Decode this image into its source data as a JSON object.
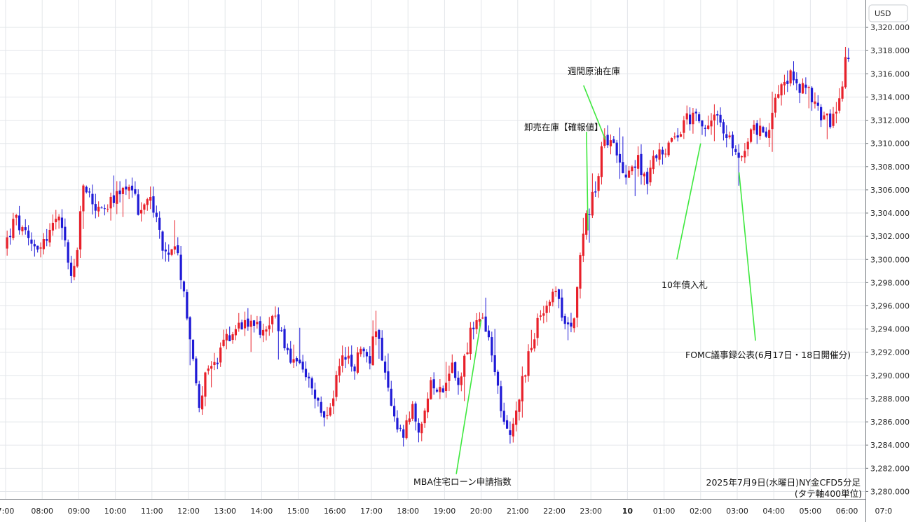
{
  "chart_data": {
    "type": "candlestick",
    "currency": "USD",
    "footer_title": "2025年7月9日(水曜日)NY金CFD5分足",
    "footer_note": "(タテ軸400単位)",
    "ylim": [
      3279,
      3322
    ],
    "y_ticks": [
      3280,
      3282,
      3284,
      3286,
      3288,
      3290,
      3292,
      3294,
      3296,
      3298,
      3300,
      3302,
      3304,
      3306,
      3308,
      3310,
      3312,
      3314,
      3316,
      3318,
      3320
    ],
    "y_tick_labels": [
      "3,280.000",
      "3,282.000",
      "3,284.000",
      "3,286.000",
      "3,288.000",
      "3,290.000",
      "3,292.000",
      "3,294.000",
      "3,296.000",
      "3,298.000",
      "3,300.000",
      "3,302.000",
      "3,304.000",
      "3,306.000",
      "3,308.000",
      "3,310.000",
      "3,312.000",
      "3,314.000",
      "3,316.000",
      "3,318.000",
      "3,320.000"
    ],
    "x_hours": [
      7,
      8,
      9,
      10,
      11,
      12,
      13,
      14,
      15,
      16,
      17,
      18,
      19,
      20,
      21,
      22,
      23,
      24,
      25,
      26,
      27,
      28,
      29,
      30,
      31
    ],
    "x_tick_labels": [
      "7:00",
      "08:00",
      "09:00",
      "10:00",
      "11:00",
      "12:00",
      "13:00",
      "14:00",
      "15:00",
      "16:00",
      "17:00",
      "18:00",
      "19:00",
      "20:00",
      "21:00",
      "22:00",
      "23:00",
      "10",
      "01:00",
      "02:00",
      "03:00",
      "04:00",
      "05:00",
      "06:00",
      "07:0"
    ],
    "bold_x_labels": [
      "10"
    ],
    "bar_minutes": 5,
    "xlim_hours": [
      7.0,
      31.0
    ],
    "up_color": "#e8202a",
    "down_color": "#1f1ad6",
    "annotation_color": "#3ee83e",
    "footer_note_color": "#e8202a",
    "anchors": [
      {
        "t": 7.0,
        "p": 3301.0
      },
      {
        "t": 7.3,
        "p": 3303.5
      },
      {
        "t": 7.7,
        "p": 3301.2
      },
      {
        "t": 8.1,
        "p": 3301.5
      },
      {
        "t": 8.45,
        "p": 3303.6
      },
      {
        "t": 8.7,
        "p": 3301.0
      },
      {
        "t": 8.85,
        "p": 3298.0
      },
      {
        "t": 9.05,
        "p": 3302.0
      },
      {
        "t": 9.15,
        "p": 3306.5
      },
      {
        "t": 9.6,
        "p": 3304.0
      },
      {
        "t": 10.0,
        "p": 3305.0
      },
      {
        "t": 10.45,
        "p": 3306.8
      },
      {
        "t": 10.7,
        "p": 3303.8
      },
      {
        "t": 11.0,
        "p": 3305.5
      },
      {
        "t": 11.2,
        "p": 3303.0
      },
      {
        "t": 11.4,
        "p": 3300.0
      },
      {
        "t": 11.7,
        "p": 3300.5
      },
      {
        "t": 11.9,
        "p": 3298.0
      },
      {
        "t": 12.1,
        "p": 3293.0
      },
      {
        "t": 12.3,
        "p": 3287.5
      },
      {
        "t": 12.6,
        "p": 3291.0
      },
      {
        "t": 12.8,
        "p": 3290.5
      },
      {
        "t": 13.0,
        "p": 3293.0
      },
      {
        "t": 13.3,
        "p": 3294.0
      },
      {
        "t": 13.6,
        "p": 3294.8
      },
      {
        "t": 13.9,
        "p": 3295.0
      },
      {
        "t": 14.1,
        "p": 3293.2
      },
      {
        "t": 14.35,
        "p": 3295.8
      },
      {
        "t": 14.6,
        "p": 3293.0
      },
      {
        "t": 14.9,
        "p": 3291.0
      },
      {
        "t": 15.2,
        "p": 3290.0
      },
      {
        "t": 15.5,
        "p": 3288.0
      },
      {
        "t": 15.8,
        "p": 3286.0
      },
      {
        "t": 16.05,
        "p": 3289.0
      },
      {
        "t": 16.3,
        "p": 3292.0
      },
      {
        "t": 16.5,
        "p": 3290.5
      },
      {
        "t": 16.75,
        "p": 3292.0
      },
      {
        "t": 17.0,
        "p": 3291.5
      },
      {
        "t": 17.15,
        "p": 3294.8
      },
      {
        "t": 17.4,
        "p": 3290.0
      },
      {
        "t": 17.65,
        "p": 3286.5
      },
      {
        "t": 17.9,
        "p": 3284.5
      },
      {
        "t": 18.15,
        "p": 3287.0
      },
      {
        "t": 18.4,
        "p": 3285.0
      },
      {
        "t": 18.7,
        "p": 3289.5
      },
      {
        "t": 19.0,
        "p": 3289.0
      },
      {
        "t": 19.2,
        "p": 3290.8
      },
      {
        "t": 19.45,
        "p": 3289.5
      },
      {
        "t": 19.75,
        "p": 3293.5
      },
      {
        "t": 19.95,
        "p": 3294.8
      },
      {
        "t": 20.15,
        "p": 3294.2
      },
      {
        "t": 20.4,
        "p": 3290.5
      },
      {
        "t": 20.6,
        "p": 3286.5
      },
      {
        "t": 20.85,
        "p": 3285.0
      },
      {
        "t": 21.1,
        "p": 3288.5
      },
      {
        "t": 21.35,
        "p": 3292.0
      },
      {
        "t": 21.6,
        "p": 3294.5
      },
      {
        "t": 21.85,
        "p": 3296.8
      },
      {
        "t": 22.05,
        "p": 3297.2
      },
      {
        "t": 22.3,
        "p": 3294.8
      },
      {
        "t": 22.55,
        "p": 3294.5
      },
      {
        "t": 22.7,
        "p": 3299.2
      },
      {
        "t": 22.9,
        "p": 3303.2
      },
      {
        "t": 23.15,
        "p": 3306.2
      },
      {
        "t": 23.4,
        "p": 3310.2
      },
      {
        "t": 23.6,
        "p": 3310.8
      },
      {
        "t": 23.8,
        "p": 3309.0
      },
      {
        "t": 24.0,
        "p": 3307.5
      },
      {
        "t": 24.3,
        "p": 3308.5
      },
      {
        "t": 24.6,
        "p": 3307.0
      },
      {
        "t": 24.9,
        "p": 3309.6
      },
      {
        "t": 25.2,
        "p": 3309.6
      },
      {
        "t": 25.5,
        "p": 3311.5
      },
      {
        "t": 25.8,
        "p": 3312.5
      },
      {
        "t": 26.0,
        "p": 3312.0
      },
      {
        "t": 26.2,
        "p": 3310.5
      },
      {
        "t": 26.4,
        "p": 3313.2
      },
      {
        "t": 26.6,
        "p": 3311.2
      },
      {
        "t": 26.9,
        "p": 3310.0
      },
      {
        "t": 27.1,
        "p": 3308.6
      },
      {
        "t": 27.35,
        "p": 3310.5
      },
      {
        "t": 27.6,
        "p": 3311.5
      },
      {
        "t": 27.85,
        "p": 3310.0
      },
      {
        "t": 28.05,
        "p": 3314.0
      },
      {
        "t": 28.3,
        "p": 3316.0
      },
      {
        "t": 28.6,
        "p": 3315.5
      },
      {
        "t": 28.85,
        "p": 3314.5
      },
      {
        "t": 29.05,
        "p": 3314.2
      },
      {
        "t": 29.3,
        "p": 3312.5
      },
      {
        "t": 29.55,
        "p": 3312.0
      },
      {
        "t": 29.8,
        "p": 3312.5
      },
      {
        "t": 29.95,
        "p": 3315.8
      },
      {
        "t": 30.0,
        "p": 3317.0
      }
    ],
    "annotations": [
      {
        "text": "週間原油在庫",
        "line_from": {
          "t": 22.8,
          "p": 3315.0
        },
        "line_to": {
          "t": 23.4,
          "p": 3310.3
        }
      },
      {
        "text": "卸売在庫【確報値】",
        "line_from": {
          "t": 22.88,
          "p": 3311.0
        },
        "line_to": {
          "t": 22.92,
          "p": 3302.5
        }
      },
      {
        "text": "10年債入札",
        "line_from": {
          "t": 25.35,
          "p": 3300.0
        },
        "line_to": {
          "t": 26.0,
          "p": 3310.0
        }
      },
      {
        "text": "FOMC議事録公表(6月17日・18日開催分)",
        "line_from": {
          "t": 27.5,
          "p": 3293.0
        },
        "line_to": {
          "t": 27.05,
          "p": 3307.5
        }
      },
      {
        "text": "MBA住宅ローン申請指数",
        "line_from": {
          "t": 19.32,
          "p": 3281.5
        },
        "line_to": {
          "t": 20.0,
          "p": 3294.8
        }
      }
    ]
  }
}
